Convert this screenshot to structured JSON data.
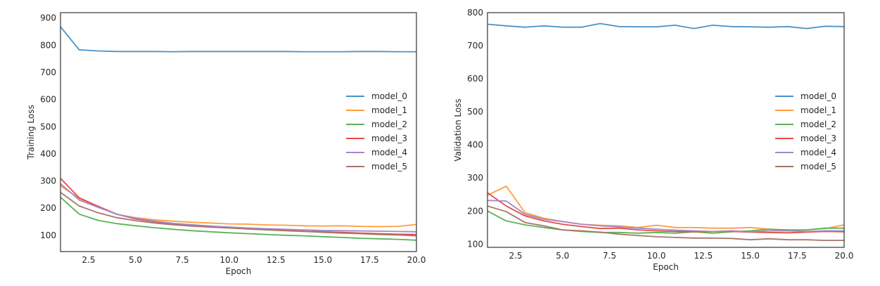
{
  "chart_data": [
    {
      "type": "line",
      "xlabel": "Epoch",
      "ylabel": "Training Loss",
      "xlim": [
        1,
        20
      ],
      "ylim": [
        40,
        920
      ],
      "xticks": [
        2.5,
        5.0,
        7.5,
        10.0,
        12.5,
        15.0,
        17.5,
        20.0
      ],
      "xtick_labels": [
        "2.5",
        "5.0",
        "7.5",
        "10.0",
        "12.5",
        "15.0",
        "17.5",
        "20.0"
      ],
      "yticks": [
        100,
        200,
        300,
        400,
        500,
        600,
        700,
        800,
        900
      ],
      "ytick_labels": [
        "100",
        "200",
        "300",
        "400",
        "500",
        "600",
        "700",
        "800",
        "900"
      ],
      "grid": false,
      "legend_position": "center-right",
      "x": [
        1,
        2,
        3,
        4,
        5,
        6,
        7,
        8,
        9,
        10,
        11,
        12,
        13,
        14,
        15,
        16,
        17,
        18,
        19,
        20
      ],
      "series": [
        {
          "name": "model_0",
          "color": "#4c93c7",
          "values": [
            868,
            783,
            779,
            777,
            777,
            777,
            776,
            777,
            777,
            777,
            777,
            777,
            777,
            776,
            776,
            776,
            777,
            777,
            776,
            776
          ]
        },
        {
          "name": "model_1",
          "color": "#ff9e3d",
          "values": [
            282,
            236,
            205,
            177,
            165,
            157,
            152,
            148,
            145,
            142,
            141,
            138,
            137,
            135,
            134,
            135,
            133,
            132,
            133,
            140
          ]
        },
        {
          "name": "model_2",
          "color": "#59b456",
          "values": [
            240,
            178,
            155,
            143,
            135,
            128,
            122,
            117,
            113,
            109,
            106,
            103,
            100,
            98,
            95,
            92,
            89,
            87,
            85,
            82
          ]
        },
        {
          "name": "model_3",
          "color": "#e74a4a",
          "values": [
            310,
            238,
            207,
            178,
            160,
            150,
            143,
            137,
            131,
            127,
            124,
            121,
            118,
            115,
            113,
            111,
            108,
            106,
            104,
            103
          ]
        },
        {
          "name": "model_4",
          "color": "#a487c8",
          "values": [
            290,
            230,
            203,
            178,
            163,
            152,
            144,
            139,
            134,
            130,
            127,
            124,
            122,
            120,
            118,
            117,
            116,
            115,
            114,
            113
          ]
        },
        {
          "name": "model_5",
          "color": "#a67669",
          "values": [
            258,
            208,
            183,
            165,
            154,
            145,
            139,
            134,
            130,
            127,
            123,
            120,
            117,
            114,
            111,
            108,
            106,
            103,
            101,
            98
          ]
        }
      ]
    },
    {
      "type": "line",
      "xlabel": "Epoch",
      "ylabel": "Validation Loss",
      "xlim": [
        1,
        20
      ],
      "ylim": [
        90,
        800
      ],
      "xticks": [
        2.5,
        5.0,
        7.5,
        10.0,
        12.5,
        15.0,
        17.5,
        20.0
      ],
      "xtick_labels": [
        "2.5",
        "5.0",
        "7.5",
        "10.0",
        "12.5",
        "15.0",
        "17.5",
        "20.0"
      ],
      "yticks": [
        100,
        200,
        300,
        400,
        500,
        600,
        700,
        800
      ],
      "ytick_labels": [
        "100",
        "200",
        "300",
        "400",
        "500",
        "600",
        "700",
        "800"
      ],
      "grid": false,
      "legend_position": "center-right",
      "x": [
        1,
        2,
        3,
        4,
        5,
        6,
        7,
        8,
        9,
        10,
        11,
        12,
        13,
        14,
        15,
        16,
        17,
        18,
        19,
        20
      ],
      "series": [
        {
          "name": "model_0",
          "color": "#4c93c7",
          "values": [
            765,
            760,
            756,
            760,
            756,
            756,
            767,
            758,
            757,
            757,
            762,
            752,
            762,
            758,
            757,
            756,
            758,
            752,
            759,
            758
          ]
        },
        {
          "name": "model_1",
          "color": "#ff9e3d",
          "values": [
            248,
            275,
            195,
            178,
            168,
            160,
            157,
            155,
            150,
            157,
            150,
            150,
            148,
            148,
            150,
            145,
            140,
            143,
            147,
            158
          ]
        },
        {
          "name": "model_2",
          "color": "#59b456",
          "values": [
            200,
            170,
            158,
            150,
            143,
            138,
            135,
            135,
            133,
            135,
            133,
            137,
            133,
            137,
            140,
            145,
            143,
            143,
            148,
            148
          ]
        },
        {
          "name": "model_3",
          "color": "#e74a4a",
          "values": [
            255,
            215,
            185,
            170,
            160,
            153,
            147,
            148,
            143,
            140,
            138,
            137,
            138,
            138,
            136,
            135,
            134,
            136,
            138,
            137
          ]
        },
        {
          "name": "model_4",
          "color": "#a487c8",
          "values": [
            232,
            230,
            190,
            175,
            168,
            160,
            155,
            152,
            148,
            145,
            142,
            140,
            138,
            140,
            137,
            140,
            140,
            138,
            140,
            140
          ]
        },
        {
          "name": "model_5",
          "color": "#a67669",
          "values": [
            215,
            198,
            165,
            155,
            143,
            140,
            136,
            130,
            126,
            122,
            120,
            118,
            118,
            117,
            113,
            116,
            113,
            113,
            111,
            111
          ]
        }
      ]
    }
  ]
}
